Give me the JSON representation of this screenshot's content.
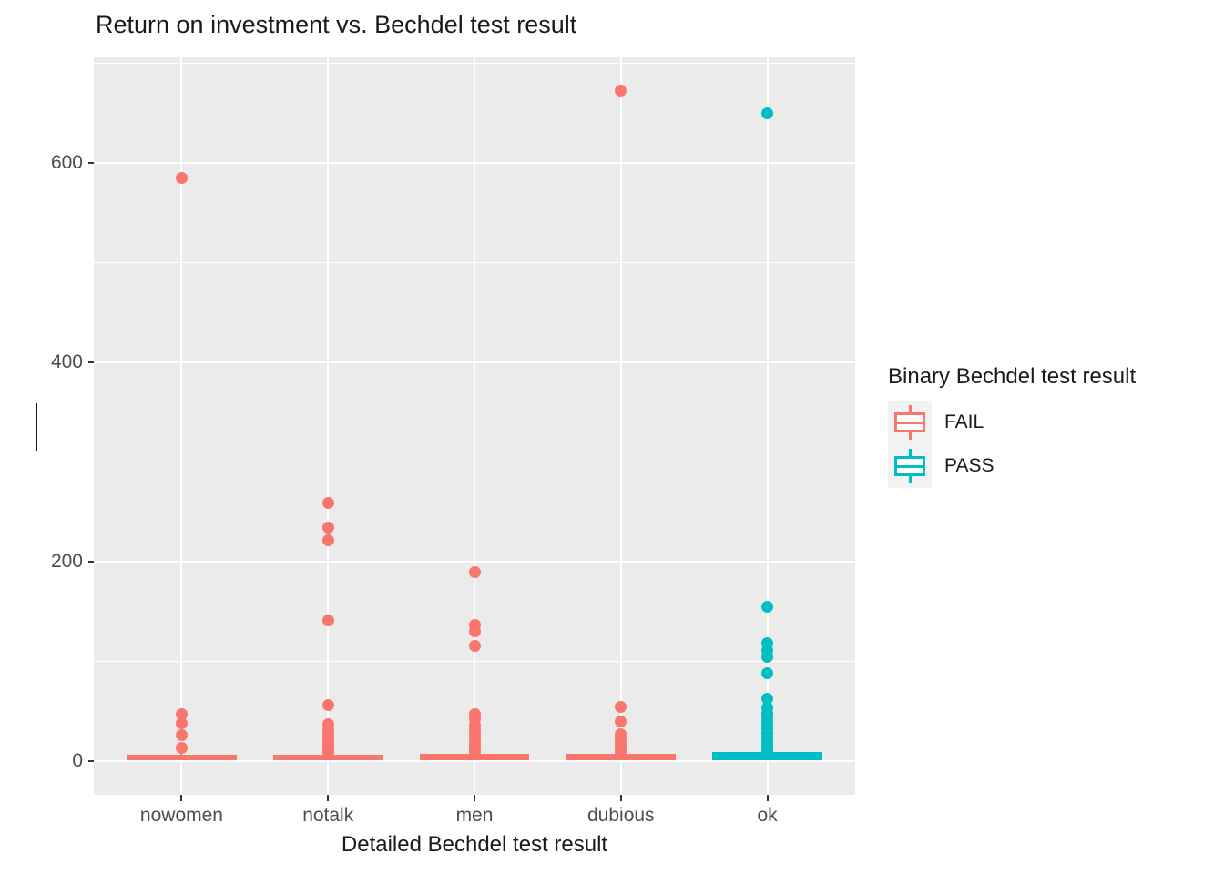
{
  "title": "Return on investment vs. Bechdel test result",
  "chart_data": {
    "type": "boxplot",
    "title": "Return on investment vs. Bechdel test result",
    "xlabel": "Detailed Bechdel test result",
    "ylabel": "",
    "categories": [
      "nowomen",
      "notalk",
      "men",
      "dubious",
      "ok"
    ],
    "ylim": [
      -34,
      706
    ],
    "y_major_breaks": [
      0,
      200,
      400,
      600
    ],
    "y_minor_breaks": [
      100,
      300,
      500,
      700
    ],
    "grid": true,
    "legend_position": "right",
    "category_expansion": 0.6,
    "box_width_ratio": 0.75,
    "groups": [
      {
        "category": "nowomen",
        "binary": "FAIL",
        "box": {
          "lo": 0.5,
          "hi": 6.5,
          "whisker_hi": 13
        },
        "outliers": [
          585,
          47,
          38,
          26,
          13
        ]
      },
      {
        "category": "notalk",
        "binary": "FAIL",
        "box": {
          "lo": 0.5,
          "hi": 6.5,
          "whisker_hi": 14
        },
        "outliers": [
          259,
          234,
          221,
          141,
          56,
          37,
          31,
          27,
          23,
          19,
          16,
          13,
          10,
          8
        ]
      },
      {
        "category": "men",
        "binary": "FAIL",
        "box": {
          "lo": 0.5,
          "hi": 7,
          "whisker_hi": 14
        },
        "outliers": [
          189,
          136,
          130,
          115,
          47,
          42,
          36,
          32,
          28,
          24,
          20,
          16,
          12,
          9
        ]
      },
      {
        "category": "dubious",
        "binary": "FAIL",
        "box": {
          "lo": 0.5,
          "hi": 7,
          "whisker_hi": 14
        },
        "outliers": [
          673,
          54,
          40,
          27,
          23,
          19,
          15,
          12,
          9
        ]
      },
      {
        "category": "ok",
        "binary": "PASS",
        "box": {
          "lo": 0.3,
          "hi": 9,
          "whisker_hi": 16
        },
        "outliers": [
          650,
          155,
          118,
          111,
          104,
          88,
          62,
          53,
          48,
          44,
          40,
          36,
          32,
          28,
          24,
          20,
          16,
          13,
          10
        ]
      }
    ],
    "series_colors": {
      "FAIL": "#F8766D",
      "PASS": "#00BFC4"
    }
  },
  "legend": {
    "title": "Binary Bechdel test result",
    "items": [
      {
        "label": "FAIL",
        "color": "#F8766D"
      },
      {
        "label": "PASS",
        "color": "#00BFC4"
      }
    ]
  },
  "colors": {
    "panel_background": "#EBEBEB",
    "gridline": "#FFFFFF",
    "axis_text": "#4D4D4D",
    "tick_mark": "#333333",
    "title_text": "#1a1a1a",
    "fail": "#F8766D",
    "pass": "#00BFC4"
  }
}
